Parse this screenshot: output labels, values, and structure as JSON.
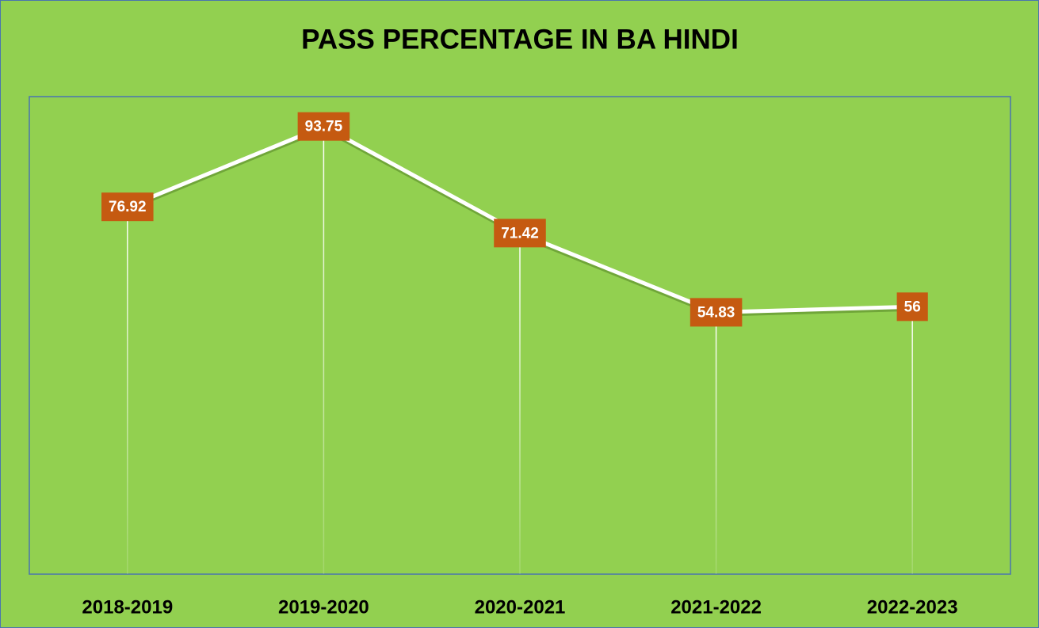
{
  "chart_data": {
    "type": "line",
    "title": "PASS PERCENTAGE IN BA HINDI",
    "categories": [
      "2018-2019",
      "2019-2020",
      "2020-2021",
      "2021-2022",
      "2022-2023"
    ],
    "values": [
      76.92,
      93.75,
      71.42,
      54.83,
      56
    ],
    "color": "#ffffff",
    "label_color": "#c55a11",
    "ylim": [
      0,
      100
    ]
  }
}
